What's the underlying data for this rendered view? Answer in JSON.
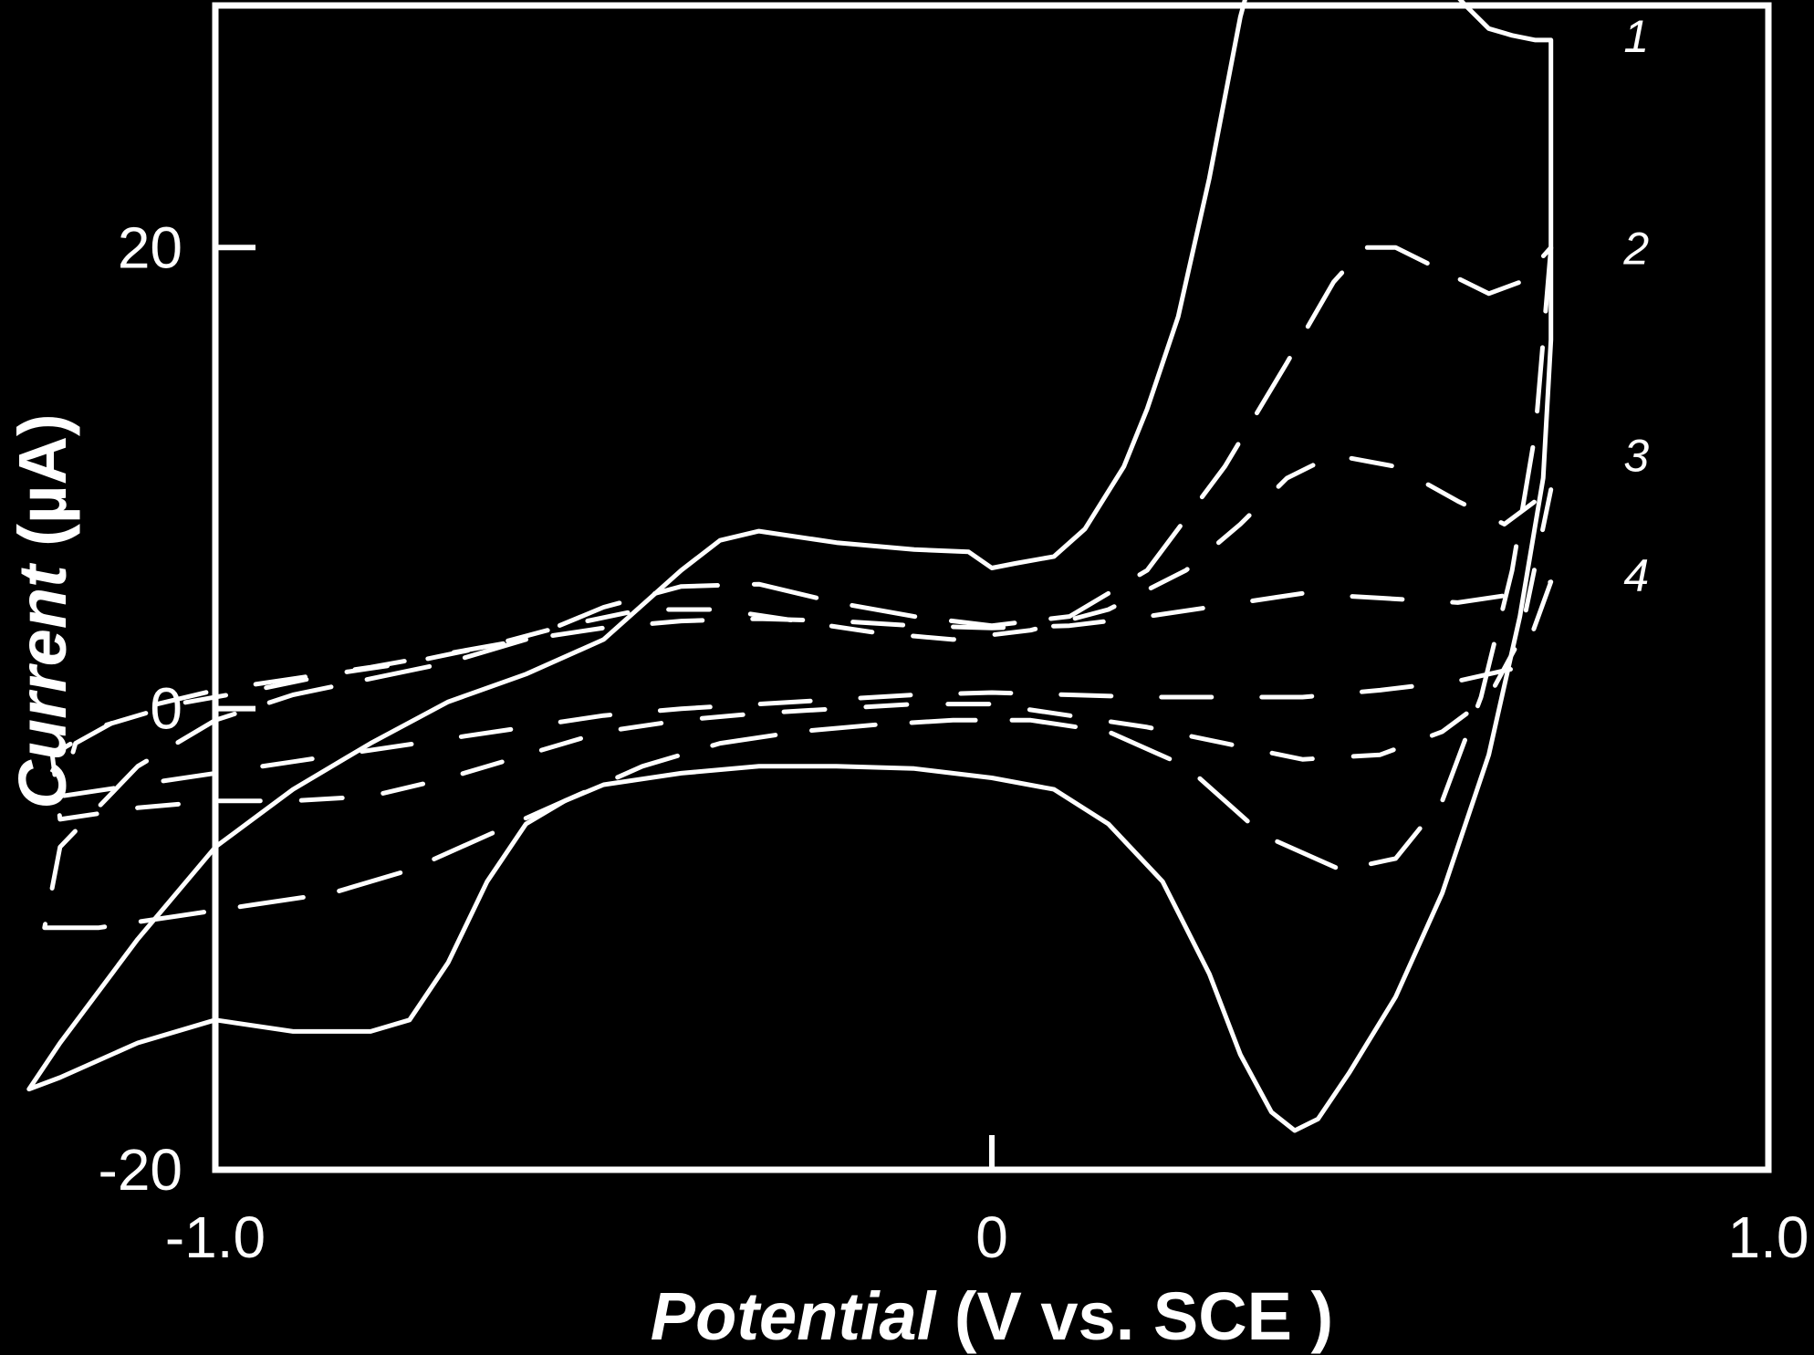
{
  "chart_data": {
    "type": "line",
    "title": "",
    "xlabel": {
      "italic": "Potential",
      "rest": " (V vs. SCE )"
    },
    "ylabel": {
      "italic": "Current",
      "rest": " (µA)"
    },
    "xlim": [
      -1.0,
      1.0
    ],
    "ylim": [
      -20,
      30.5
    ],
    "x_ticks": [
      {
        "value": -1.0,
        "label": "-1.0"
      },
      {
        "value": 0,
        "label": "0"
      },
      {
        "value": 1.0,
        "label": "1.0"
      }
    ],
    "y_ticks": [
      {
        "value": 20,
        "label": "20"
      },
      {
        "value": 0,
        "label": "0"
      },
      {
        "value": -20,
        "label": "-20"
      }
    ],
    "colors": {
      "background": "#000000",
      "foreground": "#ffffff"
    },
    "grid": false,
    "series": [
      {
        "name": "1",
        "dashed": false,
        "label_anchor": {
          "x": 0.83,
          "y": 29.2
        },
        "x": [
          0.72,
          0.72,
          0.72,
          0.71,
          0.68,
          0.64,
          0.58,
          0.52,
          0.46,
          0.42,
          0.39,
          0.36,
          0.32,
          0.28,
          0.22,
          0.15,
          0.08,
          0.0,
          -0.1,
          -0.2,
          -0.3,
          -0.4,
          -0.5,
          -0.55,
          -0.6,
          -0.65,
          -0.7,
          -0.75,
          -0.8,
          -0.9,
          -1.0,
          -1.1,
          -1.2,
          -1.24,
          -1.2,
          -1.1,
          -1.0,
          -0.9,
          -0.8,
          -0.7,
          -0.6,
          -0.5,
          -0.45,
          -0.4,
          -0.35,
          -0.3,
          -0.2,
          -0.1,
          -0.03,
          0.0,
          0.03,
          0.08,
          0.12,
          0.17,
          0.2,
          0.24,
          0.28,
          0.32,
          0.36,
          0.42,
          0.48,
          0.52,
          0.54,
          0.57,
          0.61,
          0.64,
          0.67,
          0.7,
          0.72
        ],
        "y": [
          29.0,
          23.0,
          16.0,
          10.0,
          4.0,
          -2.0,
          -8.0,
          -12.5,
          -15.8,
          -17.8,
          -18.3,
          -17.5,
          -15.0,
          -11.5,
          -7.5,
          -5.0,
          -3.5,
          -3.0,
          -2.6,
          -2.5,
          -2.5,
          -2.8,
          -3.3,
          -4.0,
          -5.0,
          -7.5,
          -11.0,
          -13.5,
          -14.0,
          -14.0,
          -13.5,
          -14.5,
          -16.0,
          -16.5,
          -14.5,
          -10.0,
          -6.0,
          -3.5,
          -1.5,
          0.3,
          1.5,
          3.0,
          4.5,
          6.0,
          7.3,
          7.7,
          7.2,
          6.9,
          6.8,
          6.1,
          6.3,
          6.6,
          7.8,
          10.5,
          13.0,
          17.0,
          23.0,
          30.0,
          35.0,
          38.8,
          38.3,
          36.0,
          34.0,
          32.0,
          30.5,
          29.5,
          29.2,
          29.0,
          29.0
        ]
      },
      {
        "name": "2",
        "dashed": true,
        "label_anchor": {
          "x": 0.83,
          "y": 20.0
        },
        "x": [
          0.72,
          0.7,
          0.67,
          0.63,
          0.58,
          0.52,
          0.45,
          0.35,
          0.25,
          0.15,
          0.05,
          -0.05,
          -0.15,
          -0.25,
          -0.35,
          -0.45,
          -0.55,
          -0.65,
          -0.75,
          -0.85,
          -0.95,
          -1.05,
          -1.15,
          -1.22,
          -1.2,
          -1.1,
          -1.0,
          -0.9,
          -0.8,
          -0.7,
          -0.6,
          -0.5,
          -0.4,
          -0.3,
          -0.2,
          -0.1,
          0.0,
          0.1,
          0.2,
          0.3,
          0.38,
          0.44,
          0.48,
          0.52,
          0.58,
          0.64,
          0.68,
          0.72
        ],
        "y": [
          20.0,
          12.0,
          6.0,
          0.5,
          -4.0,
          -6.5,
          -7.0,
          -5.5,
          -2.5,
          -1.0,
          -0.5,
          -0.5,
          -0.7,
          -1.0,
          -1.5,
          -2.5,
          -4.0,
          -5.5,
          -7.0,
          -8.0,
          -8.5,
          -9.0,
          -9.5,
          -9.5,
          -6.0,
          -2.5,
          -0.5,
          0.6,
          1.3,
          2.0,
          3.0,
          4.4,
          5.3,
          5.4,
          4.6,
          4.0,
          3.6,
          4.0,
          6.0,
          10.5,
          15.0,
          18.5,
          20.0,
          20.0,
          19.0,
          18.0,
          18.5,
          20.0
        ]
      },
      {
        "name": "3",
        "dashed": true,
        "label_anchor": {
          "x": 0.83,
          "y": 11.0
        },
        "x": [
          0.72,
          0.68,
          0.64,
          0.58,
          0.5,
          0.4,
          0.3,
          0.2,
          0.1,
          0.0,
          -0.1,
          -0.2,
          -0.3,
          -0.4,
          -0.5,
          -0.6,
          -0.7,
          -0.8,
          -0.9,
          -1.0,
          -1.1,
          -1.2,
          -1.21,
          -1.15,
          -1.05,
          -0.95,
          -0.85,
          -0.75,
          -0.65,
          -0.55,
          -0.45,
          -0.35,
          -0.25,
          -0.15,
          -0.05,
          0.05,
          0.15,
          0.25,
          0.32,
          0.38,
          0.44,
          0.52,
          0.6,
          0.66,
          0.72
        ],
        "y": [
          9.5,
          3.0,
          0.5,
          -1.0,
          -2.0,
          -2.2,
          -1.5,
          -0.8,
          -0.3,
          0.2,
          0.2,
          0.0,
          -0.2,
          -0.5,
          -1.0,
          -2.0,
          -3.0,
          -3.8,
          -4.0,
          -4.0,
          -4.3,
          -4.8,
          -2.0,
          -0.8,
          0.2,
          0.8,
          1.5,
          2.0,
          2.7,
          3.6,
          4.3,
          4.3,
          3.8,
          3.3,
          3.0,
          3.4,
          4.3,
          6.0,
          8.0,
          10.0,
          11.0,
          10.5,
          9.0,
          8.0,
          9.5
        ]
      },
      {
        "name": "4",
        "dashed": true,
        "label_anchor": {
          "x": 0.83,
          "y": 5.8
        },
        "x": [
          0.72,
          0.68,
          0.6,
          0.5,
          0.4,
          0.3,
          0.2,
          0.1,
          0.0,
          -0.1,
          -0.2,
          -0.3,
          -0.4,
          -0.5,
          -0.6,
          -0.7,
          -0.8,
          -0.9,
          -1.0,
          -1.1,
          -1.2,
          -1.18,
          -1.1,
          -1.0,
          -0.9,
          -0.8,
          -0.7,
          -0.6,
          -0.5,
          -0.4,
          -0.3,
          -0.2,
          -0.1,
          0.0,
          0.1,
          0.2,
          0.3,
          0.4,
          0.5,
          0.6,
          0.68,
          0.72
        ],
        "y": [
          5.5,
          1.8,
          1.2,
          0.8,
          0.5,
          0.5,
          0.5,
          0.6,
          0.7,
          0.6,
          0.4,
          0.2,
          0.0,
          -0.3,
          -0.8,
          -1.3,
          -1.8,
          -2.3,
          -2.8,
          -3.3,
          -3.8,
          -1.5,
          0.0,
          0.8,
          1.3,
          1.8,
          2.4,
          3.0,
          3.5,
          3.8,
          3.9,
          3.8,
          3.6,
          3.5,
          3.6,
          4.0,
          4.5,
          5.0,
          4.8,
          4.6,
          5.0,
          5.5
        ]
      }
    ]
  }
}
